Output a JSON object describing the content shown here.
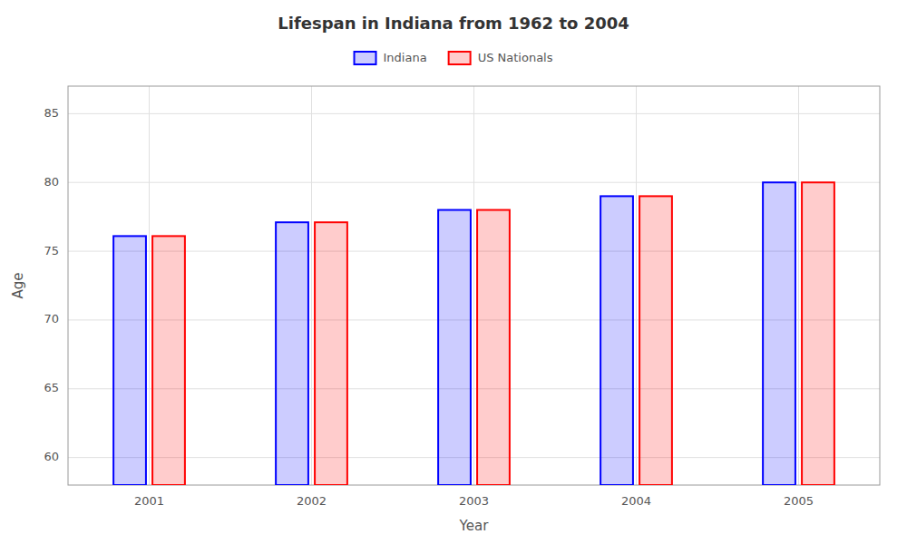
{
  "chart_data": {
    "type": "bar",
    "title": "Lifespan in Indiana from 1962 to 2004",
    "x_label": "Year",
    "y_label": "Age",
    "categories": [
      "2001",
      "2002",
      "2003",
      "2004",
      "2005"
    ],
    "series": [
      {
        "name": "Indiana",
        "color": "#0000ff",
        "values": [
          76.1,
          77.1,
          78.0,
          79.0,
          80.0
        ]
      },
      {
        "name": "US Nationals",
        "color": "#ff0000",
        "values": [
          76.1,
          77.1,
          78.0,
          79.0,
          80.0
        ]
      }
    ],
    "ylim": [
      58,
      87
    ],
    "yticks": [
      60,
      65,
      70,
      75,
      80,
      85
    ],
    "grid": true,
    "legend": "top"
  }
}
